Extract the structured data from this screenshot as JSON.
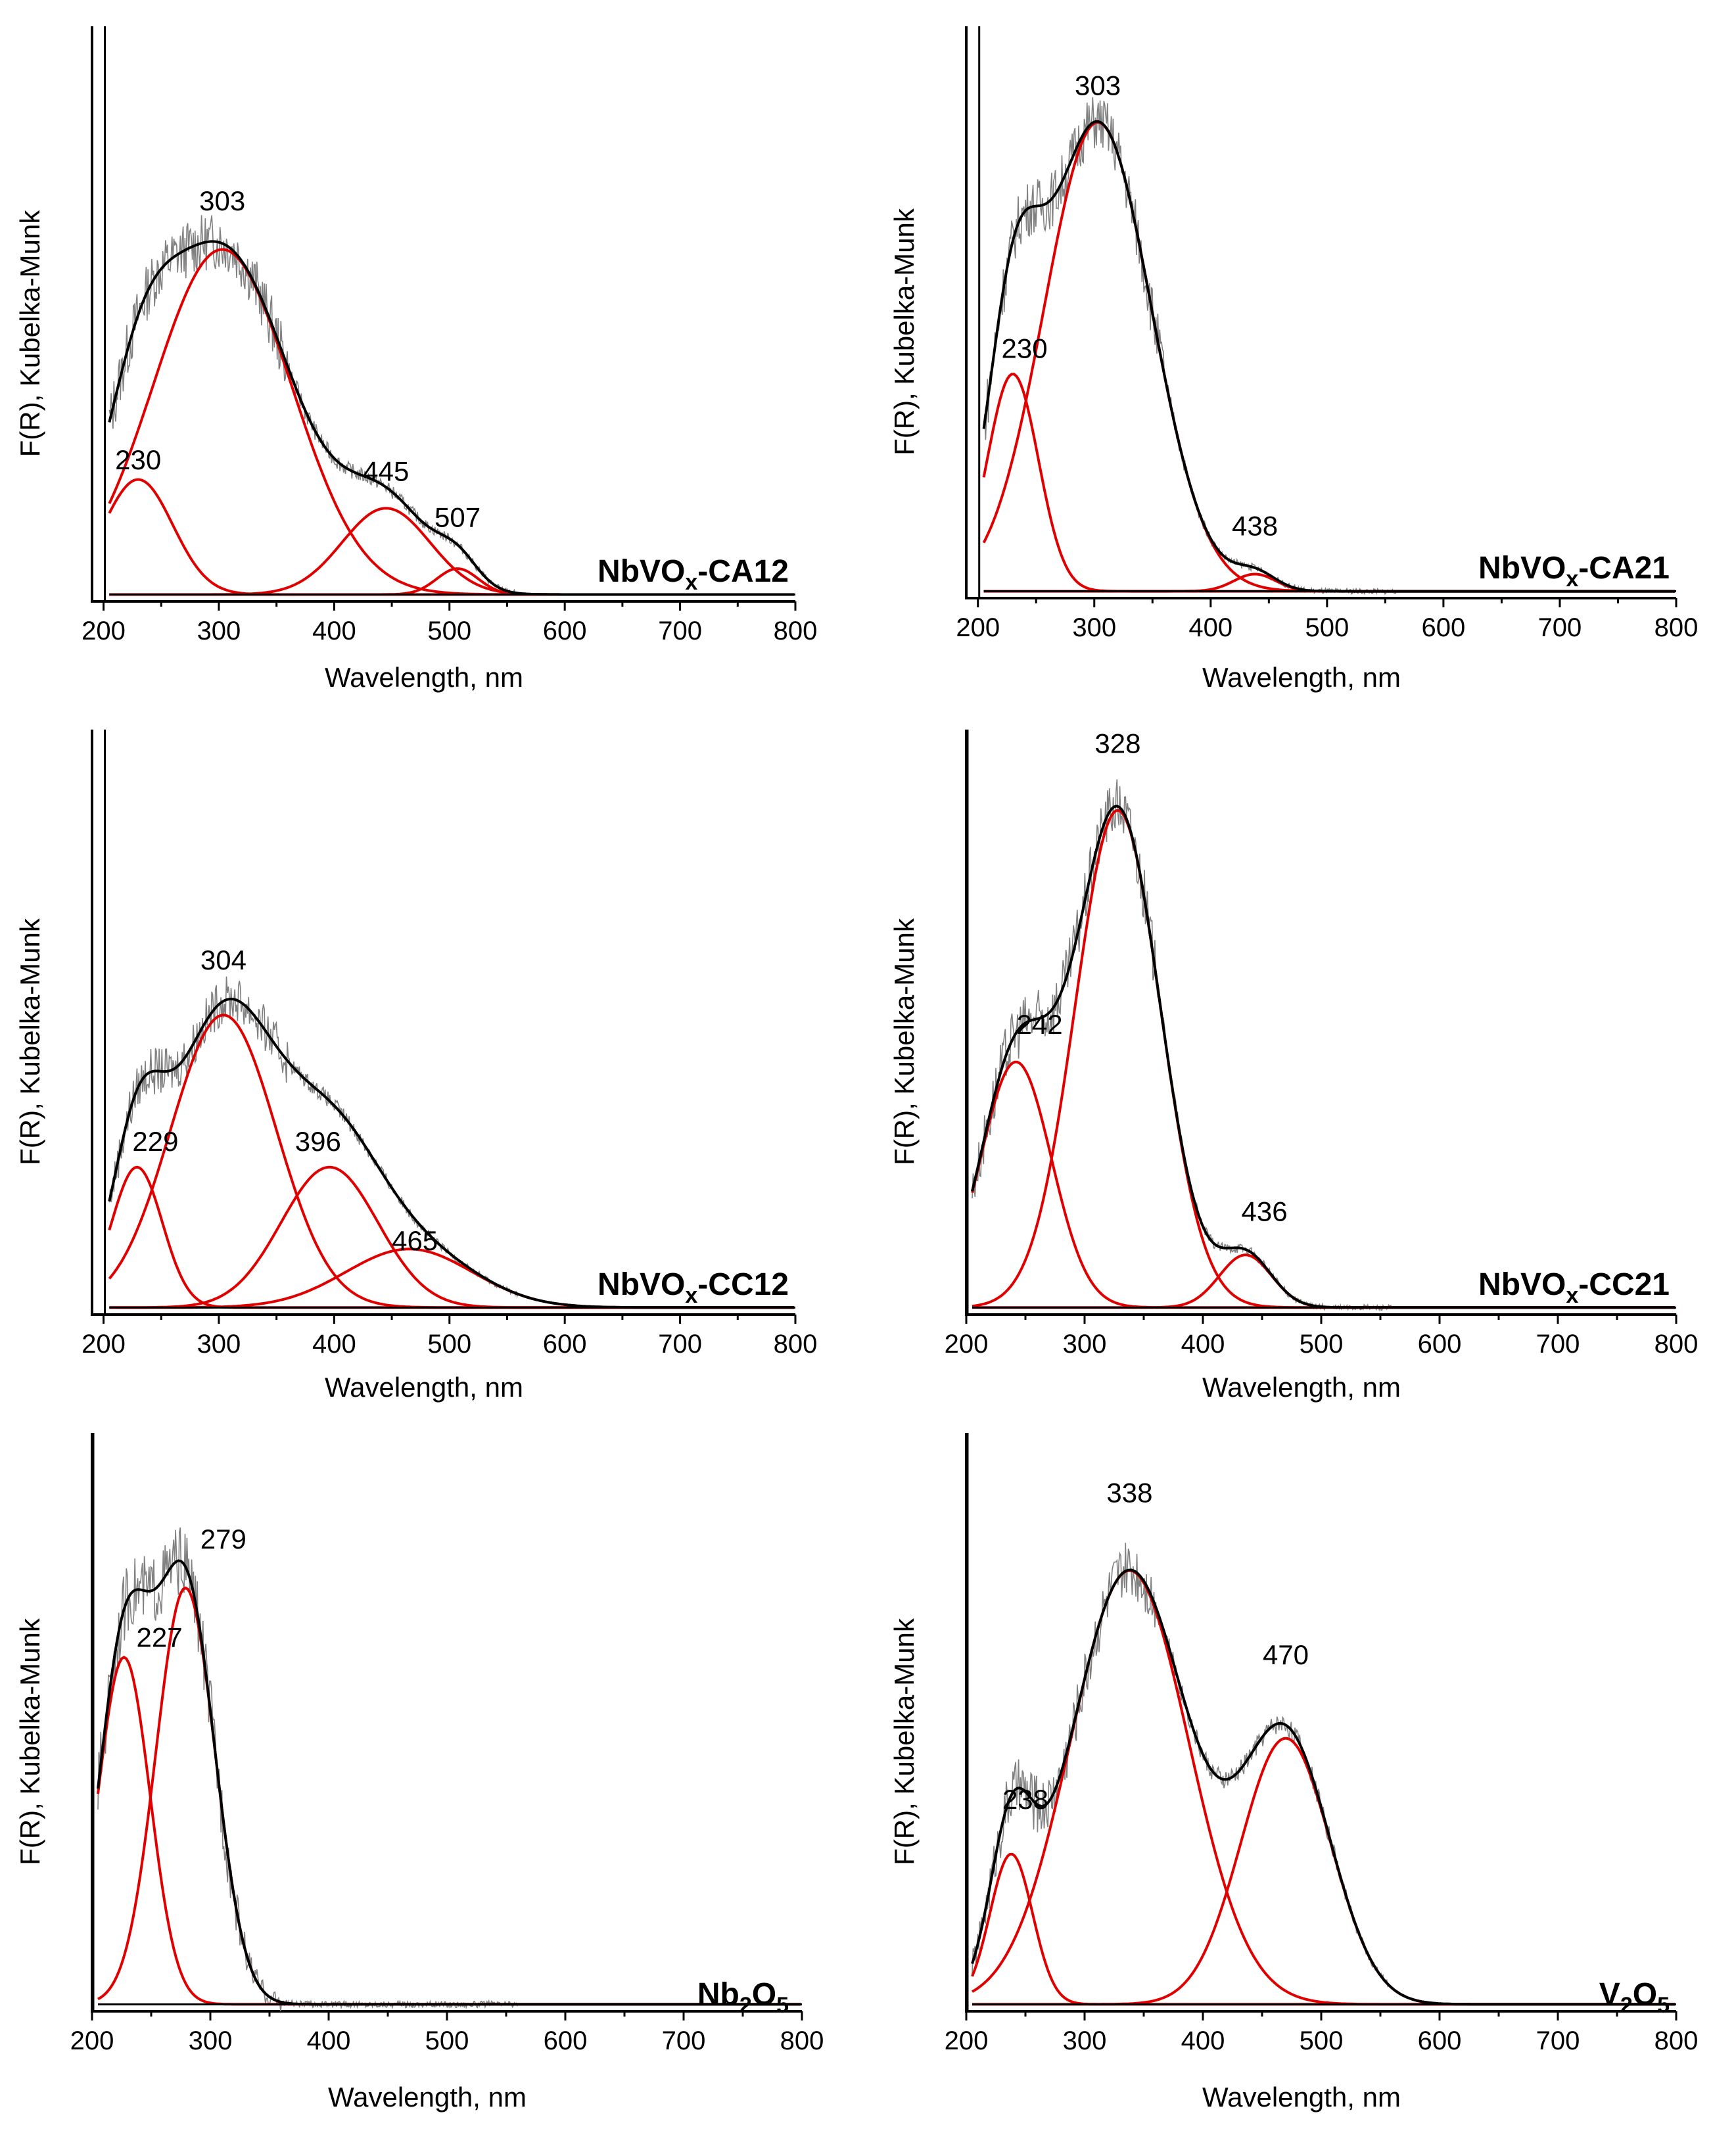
{
  "colors": {
    "spectrum": "#000000",
    "noise": "#808080",
    "component": "#e00000",
    "axis": "#000000"
  },
  "chart_data": [
    {
      "type": "line",
      "title": "",
      "sample_main": "NbVO",
      "sample_sub": "x",
      "sample_rest": "-CA12",
      "xlabel": "Wavelength, nm",
      "ylabel": "F(R), Kubelka-Munk",
      "xlim": [
        190,
        800
      ],
      "ylim": [
        0,
        1.0
      ],
      "xticks": [
        "200",
        "300",
        "400",
        "500",
        "600",
        "700",
        "800"
      ],
      "noise_amp": 0.05,
      "components": [
        {
          "center": 230,
          "amp": 0.2,
          "sigma": 30
        },
        {
          "center": 303,
          "amp": 0.6,
          "sigma": 60
        },
        {
          "center": 445,
          "amp": 0.15,
          "sigma": 38
        },
        {
          "center": 507,
          "amp": 0.045,
          "sigma": 18
        }
      ],
      "labels": [
        {
          "text": "303",
          "x": 303,
          "y": 0.68
        },
        {
          "text": "230",
          "x": 230,
          "y": 0.23
        },
        {
          "text": "445",
          "x": 445,
          "y": 0.21
        },
        {
          "text": "507",
          "x": 507,
          "y": 0.13
        }
      ]
    },
    {
      "type": "line",
      "title": "",
      "sample_main": "NbVO",
      "sample_sub": "x",
      "sample_rest": "-CA21",
      "xlabel": "Wavelength, nm",
      "ylabel": "F(R), Kubelka-Munk",
      "xlim": [
        190,
        800
      ],
      "ylim": [
        0,
        1.0
      ],
      "xticks": [
        "200",
        "300",
        "400",
        "500",
        "600",
        "700",
        "800"
      ],
      "noise_amp": 0.05,
      "components": [
        {
          "center": 230,
          "amp": 0.38,
          "sigma": 22
        },
        {
          "center": 303,
          "amp": 0.82,
          "sigma": 46
        },
        {
          "center": 438,
          "amp": 0.03,
          "sigma": 18
        }
      ],
      "labels": [
        {
          "text": "303",
          "x": 303,
          "y": 0.88
        },
        {
          "text": "230",
          "x": 240,
          "y": 0.42
        },
        {
          "text": "438",
          "x": 438,
          "y": 0.11
        }
      ]
    },
    {
      "type": "line",
      "title": "",
      "sample_main": "NbVO",
      "sample_sub": "x",
      "sample_rest": "-CC12",
      "xlabel": "Wavelength, nm",
      "ylabel": "F(R), Kubelka-Munk",
      "xlim": [
        190,
        800
      ],
      "ylim": [
        0,
        1.0
      ],
      "xticks": [
        "200",
        "300",
        "400",
        "500",
        "600",
        "700",
        "800"
      ],
      "noise_amp": 0.04,
      "components": [
        {
          "center": 229,
          "amp": 0.24,
          "sigma": 22
        },
        {
          "center": 304,
          "amp": 0.5,
          "sigma": 46
        },
        {
          "center": 396,
          "amp": 0.24,
          "sigma": 42
        },
        {
          "center": 465,
          "amp": 0.1,
          "sigma": 55
        }
      ],
      "labels": [
        {
          "text": "304",
          "x": 304,
          "y": 0.59
        },
        {
          "text": "229",
          "x": 245,
          "y": 0.28
        },
        {
          "text": "396",
          "x": 386,
          "y": 0.28
        },
        {
          "text": "465",
          "x": 470,
          "y": 0.11
        }
      ]
    },
    {
      "type": "line",
      "title": "",
      "sample_main": "NbVO",
      "sample_sub": "x",
      "sample_rest": "-CC21",
      "xlabel": "Wavelength, nm",
      "ylabel": "F(R), Kubelka-Munk",
      "xlim": [
        200,
        800
      ],
      "ylim": [
        0,
        1.0
      ],
      "xticks": [
        "200",
        "300",
        "400",
        "500",
        "600",
        "700",
        "800"
      ],
      "noise_amp": 0.05,
      "components": [
        {
          "center": 242,
          "amp": 0.42,
          "sigma": 30
        },
        {
          "center": 328,
          "amp": 0.85,
          "sigma": 36
        },
        {
          "center": 436,
          "amp": 0.09,
          "sigma": 22
        }
      ],
      "labels": [
        {
          "text": "328",
          "x": 328,
          "y": 0.96
        },
        {
          "text": "242",
          "x": 262,
          "y": 0.48
        },
        {
          "text": "436",
          "x": 452,
          "y": 0.16
        }
      ]
    },
    {
      "type": "line",
      "title": "",
      "sample_main": "Nb",
      "sample_sub": "2",
      "sample_rest": "O",
      "sample_sub2": "5",
      "xlabel": "Wavelength, nm",
      "ylabel": "F(R), Kubelka-Munk",
      "xlim": [
        200,
        800
      ],
      "ylim": [
        0,
        1.0
      ],
      "xticks": [
        "200",
        "300",
        "400",
        "500",
        "600",
        "700",
        "800"
      ],
      "noise_amp": 0.06,
      "components": [
        {
          "center": 227,
          "amp": 0.6,
          "sigma": 22
        },
        {
          "center": 279,
          "amp": 0.72,
          "sigma": 25
        }
      ],
      "labels": [
        {
          "text": "279",
          "x": 311,
          "y": 0.8
        },
        {
          "text": "227",
          "x": 257,
          "y": 0.63
        }
      ]
    },
    {
      "type": "line",
      "title": "",
      "sample_main": "V",
      "sample_sub": "2",
      "sample_rest": "O",
      "sample_sub2": "5",
      "xlabel": "Wavelength, nm",
      "ylabel": "F(R), Kubelka-Munk",
      "xlim": [
        200,
        800
      ],
      "ylim": [
        0,
        1.0
      ],
      "xticks": [
        "200",
        "300",
        "400",
        "500",
        "600",
        "700",
        "800"
      ],
      "noise_amp": 0.05,
      "components": [
        {
          "center": 238,
          "amp": 0.26,
          "sigma": 18
        },
        {
          "center": 338,
          "amp": 0.75,
          "sigma": 50
        },
        {
          "center": 470,
          "amp": 0.46,
          "sigma": 38
        }
      ],
      "labels": [
        {
          "text": "338",
          "x": 338,
          "y": 0.88
        },
        {
          "text": "470",
          "x": 470,
          "y": 0.6
        },
        {
          "text": "238",
          "x": 250,
          "y": 0.35
        }
      ]
    }
  ]
}
